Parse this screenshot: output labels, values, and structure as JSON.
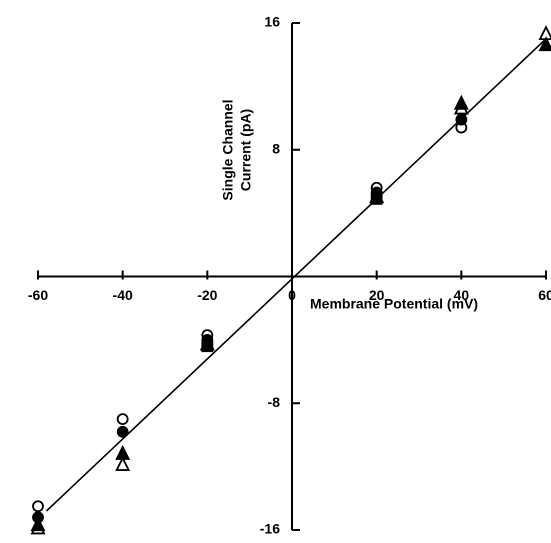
{
  "chart_data": {
    "type": "scatter",
    "xlabel": "Membrane Potential (mV)",
    "ylabel": [
      "Single Channel",
      "Current (pA)"
    ],
    "xlim": [
      -60,
      60
    ],
    "ylim": [
      -16,
      16
    ],
    "xticks": [
      -60,
      -40,
      -20,
      0,
      20,
      40,
      60
    ],
    "yticks": [
      -16,
      -8,
      8,
      16
    ],
    "color": "#000000",
    "series": [
      {
        "marker": "open-circle",
        "x": [
          -60,
          -40,
          -20,
          20,
          40
        ],
        "values": [
          -14.5,
          -9.0,
          -3.7,
          5.6,
          9.4
        ]
      },
      {
        "marker": "filled-circle",
        "x": [
          -60,
          -40,
          -20,
          20,
          40
        ],
        "values": [
          -15.2,
          -9.8,
          -4.0,
          5.3,
          9.9
        ]
      },
      {
        "marker": "open-triangle",
        "x": [
          -60,
          -40,
          -20,
          20,
          40,
          60
        ],
        "values": [
          -15.9,
          -11.9,
          -4.3,
          5.0,
          10.6,
          15.3
        ]
      },
      {
        "marker": "filled-triangle",
        "x": [
          -60,
          -40,
          -20,
          20,
          40,
          60
        ],
        "values": [
          -15.7,
          -11.2,
          -4.3,
          5.0,
          10.9,
          14.6
        ]
      },
      {
        "marker": "filled-square",
        "x": [
          -20,
          20
        ],
        "values": [
          -4.4,
          4.9
        ]
      }
    ],
    "fit_line": {
      "x": [
        -58,
        60
      ],
      "values": [
        -14.8,
        15
      ]
    }
  }
}
